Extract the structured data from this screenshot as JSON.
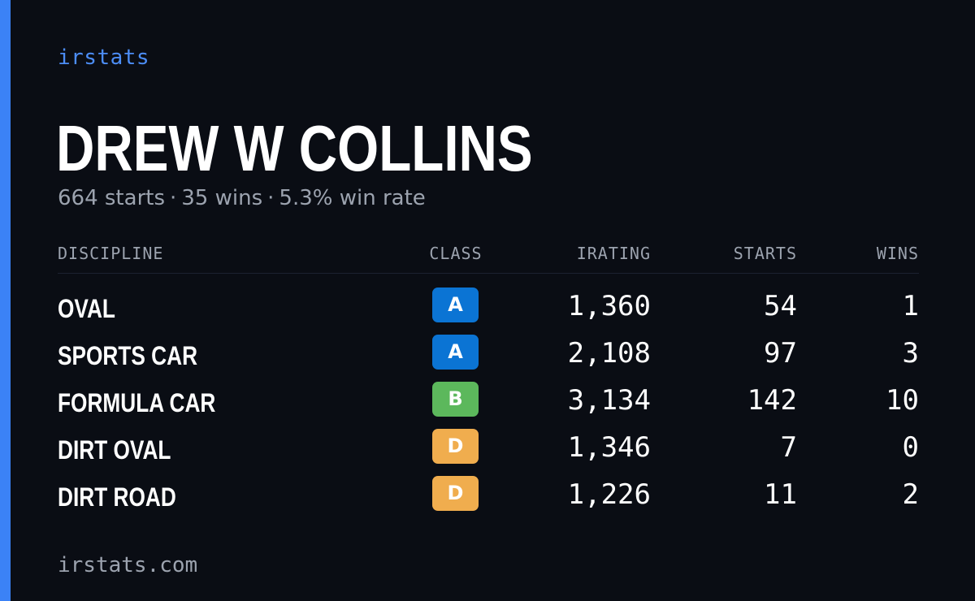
{
  "brand": "irstats",
  "driver": {
    "name": "DREW W COLLINS",
    "starts_text": "664 starts",
    "wins_text": "35 wins",
    "win_rate_text": "5.3% win rate",
    "separator": "·"
  },
  "table": {
    "headers": {
      "discipline": "DISCIPLINE",
      "class": "CLASS",
      "irating": "IRATING",
      "starts": "STARTS",
      "wins": "WINS"
    },
    "rows": [
      {
        "discipline": "OVAL",
        "class": "A",
        "class_color": "#0b74d4",
        "irating": "1,360",
        "starts": "54",
        "wins": "1"
      },
      {
        "discipline": "SPORTS CAR",
        "class": "A",
        "class_color": "#0b74d4",
        "irating": "2,108",
        "starts": "97",
        "wins": "3"
      },
      {
        "discipline": "FORMULA CAR",
        "class": "B",
        "class_color": "#5cb85c",
        "irating": "3,134",
        "starts": "142",
        "wins": "10"
      },
      {
        "discipline": "DIRT OVAL",
        "class": "D",
        "class_color": "#f0ad4e",
        "irating": "1,346",
        "starts": "7",
        "wins": "0"
      },
      {
        "discipline": "DIRT ROAD",
        "class": "D",
        "class_color": "#f0ad4e",
        "irating": "1,226",
        "starts": "11",
        "wins": "2"
      }
    ]
  },
  "footer": "irstats.com",
  "colors": {
    "accent": "#3b82f6",
    "background": "#0a0d14"
  }
}
